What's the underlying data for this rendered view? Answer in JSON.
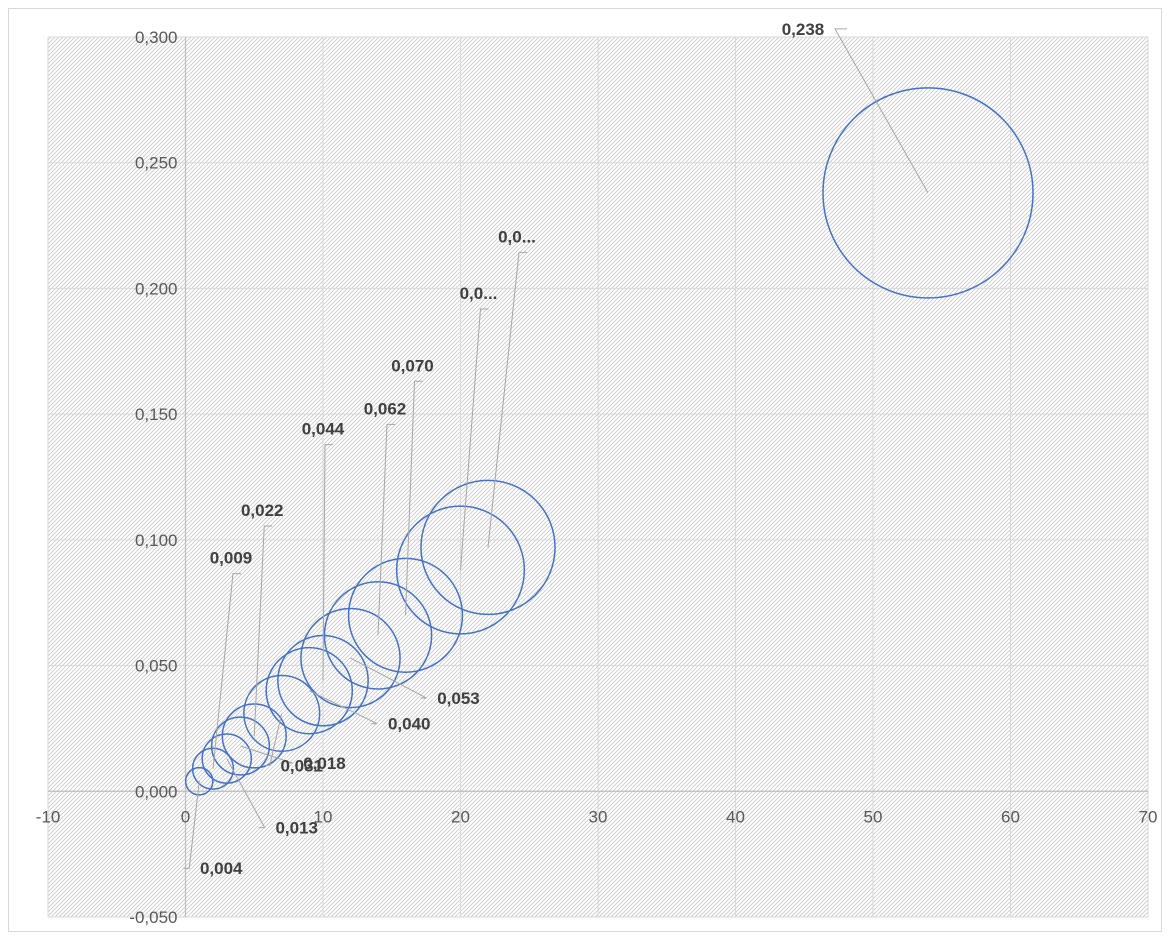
{
  "chart_data": {
    "type": "bubble",
    "xlim": [
      -10,
      70
    ],
    "ylim": [
      -0.05,
      0.3
    ],
    "x_ticks": [
      -10,
      0,
      10,
      20,
      30,
      40,
      50,
      60,
      70
    ],
    "y_ticks": [
      "-0,050",
      "0,000",
      "0,050",
      "0,100",
      "0,150",
      "0,200",
      "0,250",
      "0,300"
    ],
    "y_tick_values": [
      -0.05,
      0,
      0.05,
      0.1,
      0.15,
      0.2,
      0.25,
      0.3
    ],
    "grid": true,
    "plot_background": "diagonal-hatch",
    "legend": "none",
    "series": [
      {
        "color": "#4472c4",
        "points": [
          {
            "x": 1,
            "y": 0.004,
            "size": 0.004,
            "label": "0,004"
          },
          {
            "x": 2,
            "y": 0.009,
            "size": 0.009,
            "label": "0,009"
          },
          {
            "x": 3,
            "y": 0.013,
            "size": 0.013,
            "label": "0,013"
          },
          {
            "x": 4,
            "y": 0.018,
            "size": 0.018,
            "label": "0,018"
          },
          {
            "x": 5,
            "y": 0.022,
            "size": 0.022,
            "label": "0,022"
          },
          {
            "x": 7,
            "y": 0.031,
            "size": 0.031,
            "label": "0,031"
          },
          {
            "x": 9,
            "y": 0.04,
            "size": 0.04,
            "label": "0,040"
          },
          {
            "x": 10,
            "y": 0.044,
            "size": 0.044,
            "label": "0,044"
          },
          {
            "x": 12,
            "y": 0.053,
            "size": 0.053,
            "label": "0,053"
          },
          {
            "x": 14,
            "y": 0.062,
            "size": 0.062,
            "label": "0,062"
          },
          {
            "x": 16,
            "y": 0.07,
            "size": 0.07,
            "label": "0,070"
          },
          {
            "x": 20,
            "y": 0.088,
            "size": 0.088,
            "label": "0,0..."
          },
          {
            "x": 22,
            "y": 0.097,
            "size": 0.097,
            "label": "0,0..."
          },
          {
            "x": 54,
            "y": 0.238,
            "size": 0.238,
            "label": "0,238"
          }
        ]
      }
    ]
  }
}
